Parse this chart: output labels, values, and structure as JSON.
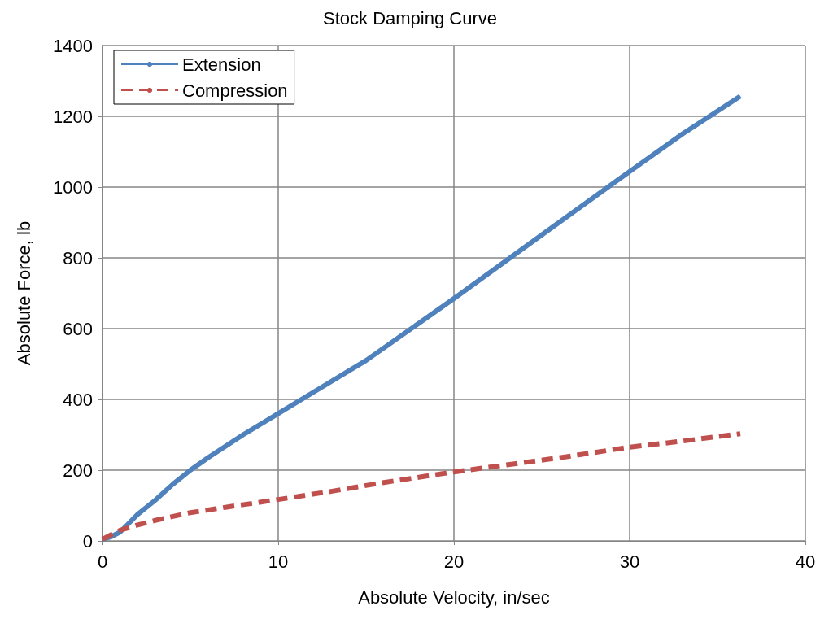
{
  "chart_data": {
    "type": "line",
    "title": "Stock Damping Curve",
    "xlabel": "Absolute Velocity, in/sec",
    "ylabel": "Absolute Force, lb",
    "series": [
      {
        "name": "Extension",
        "color": "#4f81bd",
        "line_style": "solid",
        "x": [
          0,
          0.5,
          1,
          1.5,
          2,
          3,
          4,
          5,
          6,
          8,
          10,
          12,
          15,
          18,
          20,
          25,
          30,
          33,
          36.3
        ],
        "values": [
          5,
          12,
          25,
          50,
          75,
          115,
          160,
          200,
          235,
          300,
          360,
          420,
          510,
          615,
          685,
          865,
          1044,
          1150,
          1257
        ]
      },
      {
        "name": "Compression",
        "color": "#c0504d",
        "line_style": "dashed",
        "x": [
          0,
          1,
          2,
          3,
          5,
          7,
          10,
          13,
          16,
          20,
          23,
          26,
          30,
          33,
          36.3
        ],
        "values": [
          5,
          30,
          45,
          58,
          80,
          95,
          117,
          140,
          165,
          195,
          215,
          235,
          265,
          282,
          303
        ]
      }
    ],
    "xlim": [
      0,
      40
    ],
    "xticks": [
      0,
      10,
      20,
      30,
      40
    ],
    "ylim": [
      0,
      1400
    ],
    "yticks": [
      0,
      200,
      400,
      600,
      800,
      1000,
      1200,
      1400
    ],
    "grid": true,
    "legend": "top left",
    "marker": "none"
  }
}
